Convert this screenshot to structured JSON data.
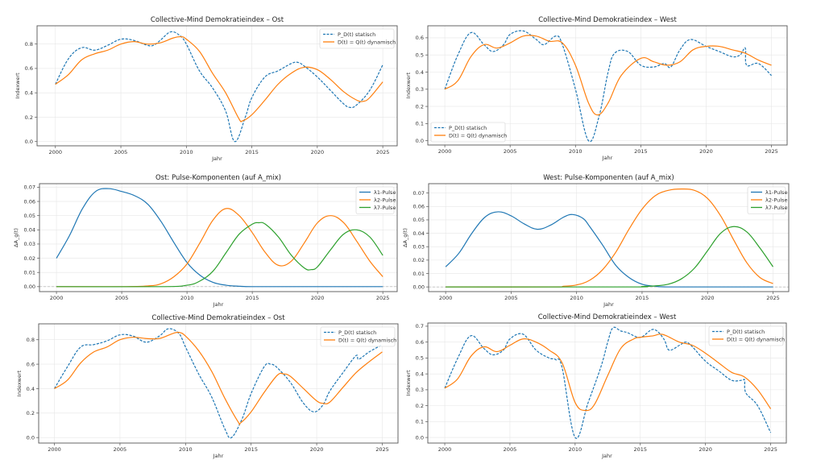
{
  "chart_data": [
    {
      "id": "ost-top",
      "type": "line",
      "title": "Collective-Mind Demokratieindex – Ost",
      "xlabel": "Jahr",
      "ylabel": "Indexwert",
      "xlim": [
        1998.6,
        2026.1
      ],
      "ylim": [
        -0.035,
        0.95
      ],
      "xticks": [
        2000,
        2005,
        2010,
        2015,
        2020,
        2025
      ],
      "yticks": [
        0.0,
        0.2,
        0.4,
        0.6,
        0.8
      ],
      "ytick_format": 1,
      "grid": true,
      "legend": "top-right",
      "series": [
        {
          "name": "P_D(t) statisch",
          "color": "#1f77b4",
          "dash": true,
          "x": [
            2000,
            2001,
            2002,
            2003,
            2004,
            2005,
            2006,
            2007,
            2007.5,
            2008,
            2008.8,
            2009.5,
            2010,
            2011,
            2012,
            2013,
            2013.7,
            2014.5,
            2015,
            2016,
            2017,
            2018,
            2018.5,
            2019,
            2020,
            2021,
            2022,
            2022.5,
            2023,
            2024,
            2025
          ],
          "y": [
            0.47,
            0.68,
            0.77,
            0.75,
            0.79,
            0.84,
            0.83,
            0.79,
            0.79,
            0.83,
            0.9,
            0.87,
            0.8,
            0.58,
            0.44,
            0.25,
            0.0,
            0.2,
            0.36,
            0.53,
            0.58,
            0.64,
            0.65,
            0.62,
            0.53,
            0.42,
            0.31,
            0.28,
            0.3,
            0.42,
            0.63
          ]
        },
        {
          "name": "D(t) = Q(t) dynamisch",
          "color": "#ff7f0e",
          "dash": false,
          "x": [
            2000,
            2001,
            2002,
            2003,
            2004,
            2005,
            2006,
            2007,
            2008,
            2009,
            2009.6,
            2010,
            2011,
            2012,
            2013,
            2014,
            2014.3,
            2015,
            2016,
            2017,
            2018,
            2019,
            2020,
            2021,
            2022,
            2023,
            2023.5,
            2024,
            2025
          ],
          "y": [
            0.47,
            0.55,
            0.67,
            0.72,
            0.75,
            0.8,
            0.82,
            0.8,
            0.81,
            0.85,
            0.86,
            0.84,
            0.74,
            0.56,
            0.4,
            0.19,
            0.17,
            0.22,
            0.34,
            0.47,
            0.56,
            0.61,
            0.59,
            0.51,
            0.41,
            0.34,
            0.33,
            0.36,
            0.49
          ]
        }
      ]
    },
    {
      "id": "west-top",
      "type": "line",
      "title": "Collective-Mind Demokratieindex – West",
      "xlabel": "Jahr",
      "ylabel": "Indexwert",
      "xlim": [
        1998.7,
        2026.2
      ],
      "ylim": [
        -0.025,
        0.67
      ],
      "xticks": [
        2000,
        2005,
        2010,
        2015,
        2020,
        2025
      ],
      "yticks": [
        0.0,
        0.1,
        0.2,
        0.3,
        0.4,
        0.5,
        0.6
      ],
      "ytick_format": 1,
      "grid": true,
      "legend": "bottom-left",
      "series": [
        {
          "name": "P_D(t) statisch",
          "color": "#1f77b4",
          "dash": true,
          "x": [
            2000,
            2001,
            2002,
            2003,
            2003.7,
            2004.5,
            2005,
            2006,
            2007,
            2007.6,
            2008.5,
            2009,
            2010,
            2011,
            2011.8,
            2012.5,
            2013,
            2014,
            2015,
            2016,
            2016.8,
            2017.3,
            2018,
            2018.8,
            2020,
            2021,
            2022,
            2022.6,
            2023,
            2023.1,
            2024,
            2025
          ],
          "y": [
            0.3,
            0.5,
            0.63,
            0.56,
            0.52,
            0.56,
            0.62,
            0.64,
            0.59,
            0.56,
            0.61,
            0.56,
            0.3,
            0.0,
            0.14,
            0.4,
            0.51,
            0.52,
            0.44,
            0.43,
            0.45,
            0.43,
            0.53,
            0.59,
            0.55,
            0.52,
            0.49,
            0.5,
            0.54,
            0.44,
            0.45,
            0.38
          ]
        },
        {
          "name": "D(t) = Q(t) dynamisch",
          "color": "#ff7f0e",
          "dash": false,
          "x": [
            2000,
            2001,
            2002,
            2003,
            2004,
            2005,
            2006,
            2007,
            2008,
            2009,
            2010,
            2011,
            2011.7,
            2012.5,
            2013.5,
            2015,
            2016,
            2017,
            2018,
            2019,
            2020,
            2021,
            2022,
            2023,
            2024,
            2025
          ],
          "y": [
            0.3,
            0.35,
            0.49,
            0.56,
            0.54,
            0.57,
            0.61,
            0.61,
            0.58,
            0.57,
            0.44,
            0.22,
            0.15,
            0.22,
            0.38,
            0.48,
            0.46,
            0.44,
            0.46,
            0.53,
            0.55,
            0.55,
            0.53,
            0.51,
            0.47,
            0.44
          ]
        }
      ]
    },
    {
      "id": "ost-pulse",
      "type": "line",
      "title": "Ost: Pulse-Komponenten (auf A_mix)",
      "xlabel": "Jahr",
      "ylabel": "ΔA_g(t)",
      "xlim": [
        1998.7,
        2026.1
      ],
      "ylim": [
        -0.0035,
        0.0725
      ],
      "xticks": [
        2000,
        2005,
        2010,
        2015,
        2020,
        2025
      ],
      "yticks": [
        0.0,
        0.01,
        0.02,
        0.03,
        0.04,
        0.05,
        0.06,
        0.07
      ],
      "ytick_format": 2,
      "grid": true,
      "legend": "top-right",
      "zero_line": true,
      "series": [
        {
          "name": "λ1-Pulse",
          "color": "#1f77b4",
          "dash": false,
          "x": [
            2000,
            2001,
            2002,
            2003,
            2004,
            2005,
            2006,
            2007,
            2008,
            2009,
            2010,
            2011,
            2012,
            2013,
            2014,
            2015,
            2017,
            2020,
            2025
          ],
          "y": [
            0.02,
            0.036,
            0.055,
            0.067,
            0.069,
            0.067,
            0.064,
            0.058,
            0.046,
            0.031,
            0.017,
            0.008,
            0.003,
            0.001,
            0.0003,
            0.0,
            0.0,
            0.0,
            0.0
          ]
        },
        {
          "name": "λ2-Pulse",
          "color": "#ff7f0e",
          "dash": false,
          "x": [
            2000,
            2005,
            2007,
            2008,
            2009,
            2010,
            2011,
            2012,
            2013,
            2014,
            2015,
            2016,
            2017,
            2018,
            2019,
            2020,
            2021,
            2022,
            2023,
            2024,
            2025
          ],
          "y": [
            0.0,
            0.0,
            0.0005,
            0.002,
            0.007,
            0.016,
            0.031,
            0.047,
            0.055,
            0.05,
            0.038,
            0.024,
            0.015,
            0.018,
            0.031,
            0.045,
            0.05,
            0.045,
            0.032,
            0.018,
            0.007
          ]
        },
        {
          "name": "λ7-Pulse",
          "color": "#2ca02c",
          "dash": false,
          "x": [
            2000,
            2008,
            2010,
            2011,
            2012,
            2013,
            2014,
            2015,
            2015.5,
            2016,
            2017,
            2018,
            2019,
            2019.5,
            2020,
            2021,
            2022,
            2023,
            2024,
            2025
          ],
          "y": [
            0.0,
            0.0,
            0.001,
            0.004,
            0.011,
            0.024,
            0.037,
            0.044,
            0.045,
            0.044,
            0.035,
            0.022,
            0.013,
            0.012,
            0.014,
            0.026,
            0.037,
            0.04,
            0.035,
            0.022
          ]
        }
      ]
    },
    {
      "id": "west-pulse",
      "type": "line",
      "title": "West: Pulse-Komponenten (auf A_mix)",
      "xlabel": "Jahr",
      "ylabel": "ΔA_g(t)",
      "xlim": [
        1998.7,
        2026.2
      ],
      "ylim": [
        -0.0035,
        0.077
      ],
      "xticks": [
        2000,
        2005,
        2010,
        2015,
        2020,
        2025
      ],
      "yticks": [
        0.0,
        0.01,
        0.02,
        0.03,
        0.04,
        0.05,
        0.06,
        0.07
      ],
      "ytick_format": 2,
      "grid": true,
      "legend": "top-right",
      "zero_line": true,
      "series": [
        {
          "name": "λ1-Pulse",
          "color": "#1f77b4",
          "dash": false,
          "x": [
            2000,
            2001,
            2002,
            2003,
            2004,
            2005,
            2006,
            2007,
            2008,
            2009,
            2009.7,
            2010.5,
            2011,
            2012,
            2013,
            2014,
            2015,
            2016,
            2017,
            2020,
            2025
          ],
          "y": [
            0.015,
            0.025,
            0.04,
            0.052,
            0.056,
            0.053,
            0.047,
            0.043,
            0.046,
            0.052,
            0.054,
            0.051,
            0.045,
            0.031,
            0.016,
            0.007,
            0.002,
            0.0005,
            0.0,
            0.0,
            0.0
          ]
        },
        {
          "name": "λ2-Pulse",
          "color": "#ff7f0e",
          "dash": false,
          "x": [
            2000,
            2008,
            2009,
            2010,
            2011,
            2012,
            2013,
            2014,
            2015,
            2016,
            2017,
            2018,
            2019,
            2020,
            2021,
            2022,
            2023,
            2024,
            2025
          ],
          "y": [
            0.0,
            0.0,
            0.0005,
            0.0015,
            0.005,
            0.013,
            0.026,
            0.043,
            0.058,
            0.068,
            0.072,
            0.073,
            0.072,
            0.066,
            0.053,
            0.035,
            0.018,
            0.007,
            0.0025
          ]
        },
        {
          "name": "λ7-Pulse",
          "color": "#2ca02c",
          "dash": false,
          "x": [
            2000,
            2014,
            2015,
            2016,
            2017,
            2018,
            2019,
            2020,
            2021,
            2022,
            2023,
            2024,
            2025
          ],
          "y": [
            0.0,
            0.0,
            0.0003,
            0.0008,
            0.002,
            0.006,
            0.014,
            0.027,
            0.04,
            0.045,
            0.041,
            0.029,
            0.015
          ]
        }
      ]
    },
    {
      "id": "ost-bottom",
      "type": "line",
      "title": "Collective-Mind Demokratieindex – Ost",
      "xlabel": "Jahr",
      "ylabel": "Indexwert",
      "xlim": [
        1998.8,
        2026.2
      ],
      "ylim": [
        -0.045,
        0.93
      ],
      "xticks": [
        2000,
        2005,
        2010,
        2015,
        2020,
        2025
      ],
      "yticks": [
        0.0,
        0.2,
        0.4,
        0.6,
        0.8
      ],
      "ytick_format": 1,
      "grid": true,
      "legend": "top-right",
      "series": [
        {
          "name": "P_D(t) statisch",
          "color": "#1f77b4",
          "dash": true,
          "x": [
            2000,
            2001,
            2002,
            2003,
            2004,
            2005,
            2006,
            2007,
            2008,
            2008.7,
            2009.5,
            2010,
            2011,
            2012,
            2013,
            2013.5,
            2014.3,
            2015,
            2016,
            2016.5,
            2017,
            2018,
            2019,
            2019.8,
            2020.5,
            2021,
            2022,
            2023,
            2023.2,
            2024,
            2025
          ],
          "y": [
            0.4,
            0.58,
            0.74,
            0.76,
            0.79,
            0.84,
            0.83,
            0.78,
            0.83,
            0.89,
            0.85,
            0.74,
            0.52,
            0.33,
            0.07,
            0.0,
            0.15,
            0.36,
            0.58,
            0.6,
            0.57,
            0.45,
            0.28,
            0.21,
            0.27,
            0.38,
            0.53,
            0.67,
            0.64,
            0.7,
            0.76
          ]
        },
        {
          "name": "D(t) = Q(t) dynamisch",
          "color": "#ff7f0e",
          "dash": false,
          "x": [
            2000,
            2001,
            2002,
            2003,
            2004,
            2005,
            2006,
            2007,
            2008,
            2009,
            2009.5,
            2010,
            2011,
            2012,
            2013,
            2014,
            2014.2,
            2015,
            2016,
            2017,
            2017.5,
            2018,
            2019,
            2020,
            2020.5,
            2021,
            2022,
            2023,
            2024,
            2025
          ],
          "y": [
            0.4,
            0.47,
            0.61,
            0.7,
            0.74,
            0.8,
            0.82,
            0.81,
            0.81,
            0.85,
            0.86,
            0.83,
            0.71,
            0.54,
            0.32,
            0.13,
            0.12,
            0.21,
            0.37,
            0.51,
            0.52,
            0.5,
            0.4,
            0.3,
            0.28,
            0.29,
            0.41,
            0.53,
            0.62,
            0.7
          ]
        }
      ]
    },
    {
      "id": "west-bottom",
      "type": "line",
      "title": "Collective-Mind Demokratieindex – West",
      "xlabel": "Jahr",
      "ylabel": "Indexwert",
      "xlim": [
        1998.7,
        2026.2
      ],
      "ylim": [
        -0.035,
        0.72
      ],
      "xticks": [
        2000,
        2005,
        2010,
        2015,
        2020,
        2025
      ],
      "yticks": [
        0.0,
        0.1,
        0.2,
        0.3,
        0.4,
        0.5,
        0.6,
        0.7
      ],
      "ytick_format": 1,
      "grid": true,
      "legend": "top-right",
      "series": [
        {
          "name": "P_D(t) statisch",
          "color": "#1f77b4",
          "dash": true,
          "x": [
            2000,
            2001,
            2002,
            2003,
            2003.7,
            2004.5,
            2005,
            2006,
            2007,
            2008,
            2008.5,
            2009,
            2010,
            2011,
            2012,
            2012.5,
            2012.9,
            2013.5,
            2014,
            2015,
            2016,
            2016.8,
            2017.2,
            2018,
            2018.5,
            2019,
            2020,
            2021,
            2022,
            2022.8,
            2023,
            2023.1,
            2024,
            2025
          ],
          "y": [
            0.31,
            0.5,
            0.64,
            0.56,
            0.52,
            0.55,
            0.62,
            0.65,
            0.55,
            0.5,
            0.49,
            0.44,
            0.0,
            0.22,
            0.45,
            0.6,
            0.69,
            0.67,
            0.66,
            0.63,
            0.68,
            0.62,
            0.55,
            0.58,
            0.6,
            0.57,
            0.48,
            0.42,
            0.36,
            0.36,
            0.36,
            0.28,
            0.2,
            0.03
          ]
        },
        {
          "name": "D(t) = Q(t) dynamisch",
          "color": "#ff7f0e",
          "dash": false,
          "x": [
            2000,
            2001,
            2002,
            2003,
            2004,
            2005,
            2006,
            2007,
            2008,
            2009,
            2010,
            2010.8,
            2011.5,
            2012.5,
            2013.5,
            2014.5,
            2015,
            2016,
            2016.5,
            2017,
            2018,
            2019,
            2020,
            2021,
            2022,
            2023,
            2024,
            2025
          ],
          "y": [
            0.31,
            0.37,
            0.51,
            0.57,
            0.54,
            0.58,
            0.62,
            0.6,
            0.55,
            0.47,
            0.22,
            0.17,
            0.21,
            0.39,
            0.56,
            0.62,
            0.63,
            0.64,
            0.65,
            0.64,
            0.6,
            0.58,
            0.53,
            0.47,
            0.41,
            0.38,
            0.3,
            0.18
          ]
        }
      ]
    }
  ]
}
